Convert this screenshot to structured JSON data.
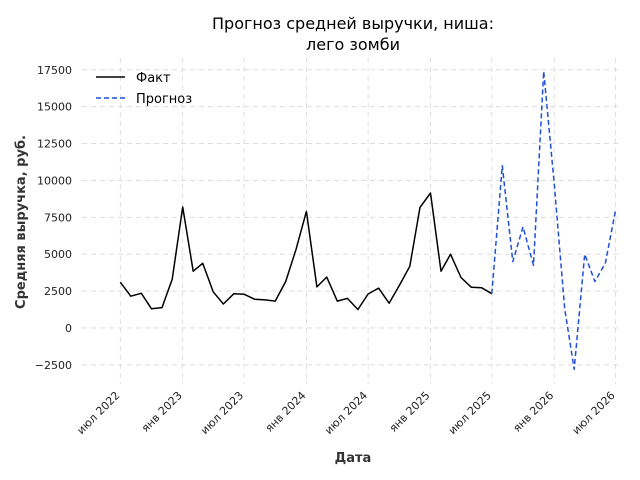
{
  "chart_data": {
    "type": "line",
    "title": [
      "Прогноз средней выручки, ниша:",
      "лего зомби"
    ],
    "xlabel": "Дата",
    "ylabel": "Средняя выручка, руб.",
    "ylim": [
      -3800,
      18300
    ],
    "y_ticks": [
      -2500,
      0,
      2500,
      5000,
      7500,
      10000,
      12500,
      15000,
      17500
    ],
    "y_tick_labels": [
      "−2500",
      "0",
      "2500",
      "5000",
      "7500",
      "10000",
      "12500",
      "15000",
      "17500"
    ],
    "x_range": [
      "2022-03-10",
      "2026-07-20"
    ],
    "x_ticks": [
      "2022-07-01",
      "2023-01-01",
      "2023-07-01",
      "2024-01-01",
      "2024-07-01",
      "2025-01-01",
      "2025-07-01",
      "2026-01-01",
      "2026-07-01"
    ],
    "x_tick_labels": [
      "июл 2022",
      "янв 2023",
      "июл 2023",
      "янв 2024",
      "июл 2024",
      "янв 2025",
      "июл 2025",
      "янв 2026",
      "июл 2026"
    ],
    "grid": true,
    "legend": "top-left",
    "series": [
      {
        "name": "Факт",
        "color": "#000000",
        "dash": "solid",
        "points": [
          [
            "2022-07-01",
            3100
          ],
          [
            "2022-08-01",
            2150
          ],
          [
            "2022-09-01",
            2350
          ],
          [
            "2022-10-01",
            1300
          ],
          [
            "2022-11-01",
            1380
          ],
          [
            "2022-12-01",
            3300
          ],
          [
            "2023-01-01",
            8200
          ],
          [
            "2023-02-01",
            3850
          ],
          [
            "2023-03-01",
            4380
          ],
          [
            "2023-04-01",
            2450
          ],
          [
            "2023-05-01",
            1620
          ],
          [
            "2023-06-01",
            2320
          ],
          [
            "2023-07-01",
            2290
          ],
          [
            "2023-08-01",
            1950
          ],
          [
            "2023-09-01",
            1900
          ],
          [
            "2023-10-01",
            1820
          ],
          [
            "2023-11-01",
            3150
          ],
          [
            "2023-12-01",
            5300
          ],
          [
            "2024-01-01",
            7900
          ],
          [
            "2024-02-01",
            2780
          ],
          [
            "2024-03-01",
            3450
          ],
          [
            "2024-04-01",
            1820
          ],
          [
            "2024-05-01",
            2000
          ],
          [
            "2024-06-01",
            1250
          ],
          [
            "2024-07-01",
            2300
          ],
          [
            "2024-08-01",
            2700
          ],
          [
            "2024-09-01",
            1680
          ],
          [
            "2024-10-01",
            2880
          ],
          [
            "2024-11-01",
            4180
          ],
          [
            "2024-12-01",
            8170
          ],
          [
            "2025-01-01",
            9150
          ],
          [
            "2025-02-01",
            3850
          ],
          [
            "2025-03-01",
            5000
          ],
          [
            "2025-04-01",
            3420
          ],
          [
            "2025-05-01",
            2760
          ],
          [
            "2025-06-01",
            2720
          ],
          [
            "2025-07-01",
            2320
          ]
        ]
      },
      {
        "name": "Прогноз",
        "color": "#1f4fd8",
        "dash": "dashed",
        "points": [
          [
            "2025-07-01",
            2320
          ],
          [
            "2025-08-01",
            11000
          ],
          [
            "2025-09-01",
            4500
          ],
          [
            "2025-10-01",
            6850
          ],
          [
            "2025-11-01",
            4250
          ],
          [
            "2025-12-01",
            17400
          ],
          [
            "2026-01-01",
            9800
          ],
          [
            "2026-02-01",
            1300
          ],
          [
            "2026-03-01",
            -2800
          ],
          [
            "2026-04-01",
            5000
          ],
          [
            "2026-05-01",
            3150
          ],
          [
            "2026-06-01",
            4400
          ],
          [
            "2026-07-01",
            8000
          ]
        ]
      }
    ]
  }
}
